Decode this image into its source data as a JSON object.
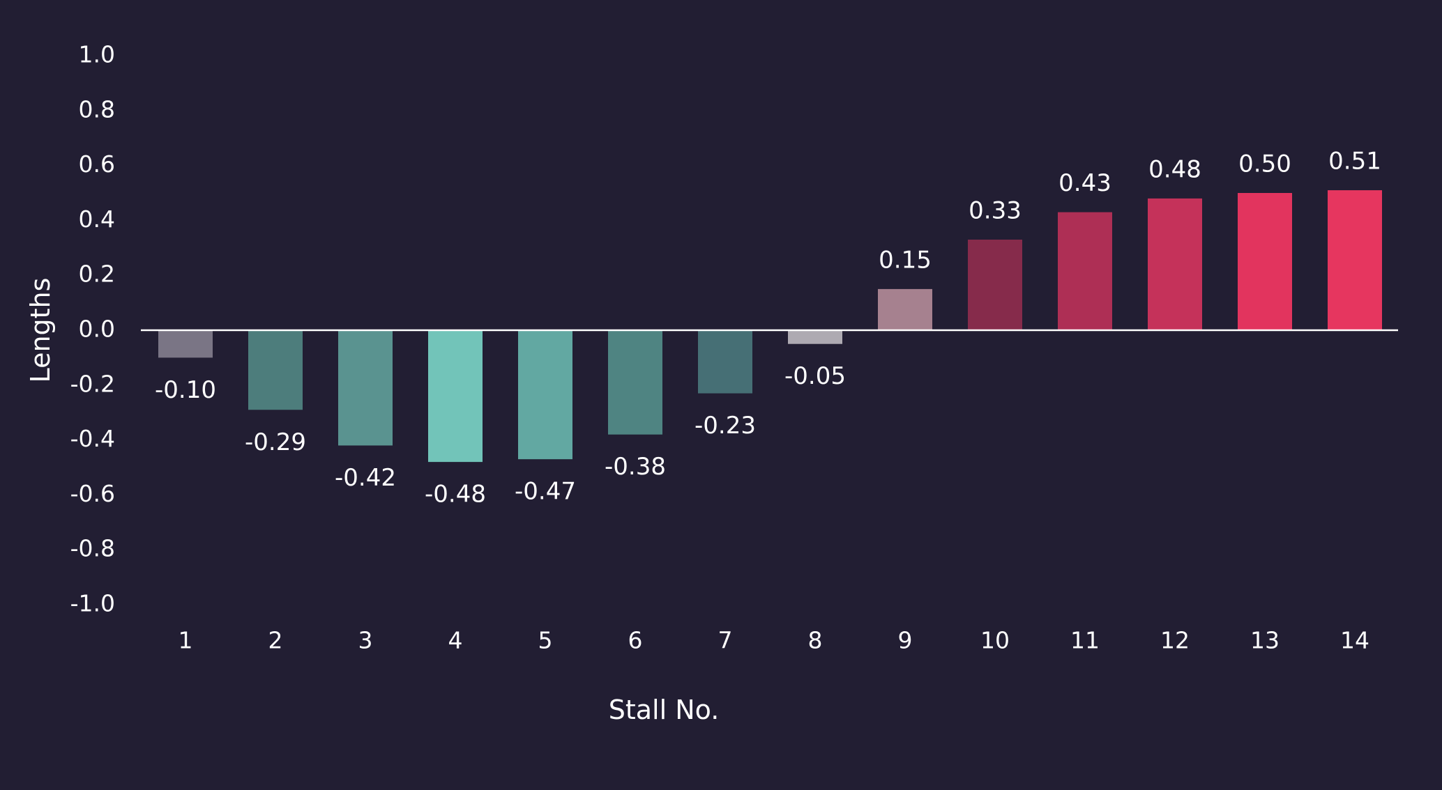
{
  "chart_data": {
    "type": "bar",
    "title": "",
    "xlabel": "Stall No.",
    "ylabel": "Lengths",
    "categories": [
      "1",
      "2",
      "3",
      "4",
      "5",
      "6",
      "7",
      "8",
      "9",
      "10",
      "11",
      "12",
      "13",
      "14"
    ],
    "values": [
      -0.1,
      -0.29,
      -0.42,
      -0.48,
      -0.47,
      -0.38,
      -0.23,
      -0.05,
      0.15,
      0.33,
      0.43,
      0.48,
      0.5,
      0.51
    ],
    "value_labels": [
      "-0.10",
      "-0.29",
      "-0.42",
      "-0.48",
      "-0.47",
      "-0.38",
      "-0.23",
      "-0.05",
      "0.15",
      "0.33",
      "0.43",
      "0.48",
      "0.50",
      "0.51"
    ],
    "bar_colors": [
      "#7a7585",
      "#4d7d7c",
      "#5a9390",
      "#72c4b9",
      "#62a8a2",
      "#4f8482",
      "#466f75",
      "#aeaab2",
      "#a6818f",
      "#862b4b",
      "#ae2f55",
      "#c5325a",
      "#e2345e",
      "#e6365f"
    ],
    "ylim": [
      -1.0,
      1.0
    ],
    "yticks": [
      "1.0",
      "0.8",
      "0.6",
      "0.4",
      "0.2",
      "0.0",
      "-0.2",
      "-0.4",
      "-0.6",
      "-0.8",
      "-1.0"
    ],
    "grid": false,
    "legend": "none",
    "background_color": "#221e33",
    "text_color": "#ffffff",
    "zero_line_color": "#ffffff"
  }
}
